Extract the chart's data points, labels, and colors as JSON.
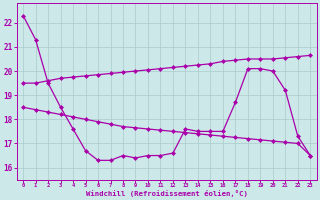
{
  "xlabel": "Windchill (Refroidissement éolien,°C)",
  "x_values": [
    0,
    1,
    2,
    3,
    4,
    5,
    6,
    7,
    8,
    9,
    10,
    11,
    12,
    13,
    14,
    15,
    16,
    17,
    18,
    19,
    20,
    21,
    22,
    23
  ],
  "line1": [
    22.3,
    21.3,
    19.5,
    18.5,
    17.6,
    16.7,
    16.3,
    16.3,
    16.5,
    16.4,
    16.5,
    16.5,
    16.6,
    17.6,
    17.5,
    17.5,
    17.5,
    18.7,
    20.1,
    20.1,
    20.0,
    19.2,
    17.3,
    16.5
  ],
  "line2": [
    19.5,
    19.5,
    19.6,
    19.7,
    19.75,
    19.8,
    19.85,
    19.9,
    19.95,
    20.0,
    20.05,
    20.1,
    20.15,
    20.2,
    20.25,
    20.3,
    20.4,
    20.45,
    20.5,
    20.5,
    20.5,
    20.55,
    20.6,
    20.65
  ],
  "line3": [
    18.5,
    18.4,
    18.3,
    18.2,
    18.1,
    18.0,
    17.9,
    17.8,
    17.7,
    17.65,
    17.6,
    17.55,
    17.5,
    17.45,
    17.4,
    17.35,
    17.3,
    17.25,
    17.2,
    17.15,
    17.1,
    17.05,
    17.0,
    16.5
  ],
  "line_color": "#aa00aa",
  "bg_color": "#cce8e8",
  "grid_color": "#aacccc",
  "ylim": [
    15.5,
    22.8
  ],
  "yticks": [
    16,
    17,
    18,
    19,
    20,
    21,
    22
  ],
  "xlim": [
    -0.5,
    23.5
  ],
  "marker": "D",
  "markersize": 2.0,
  "linewidth": 0.9
}
